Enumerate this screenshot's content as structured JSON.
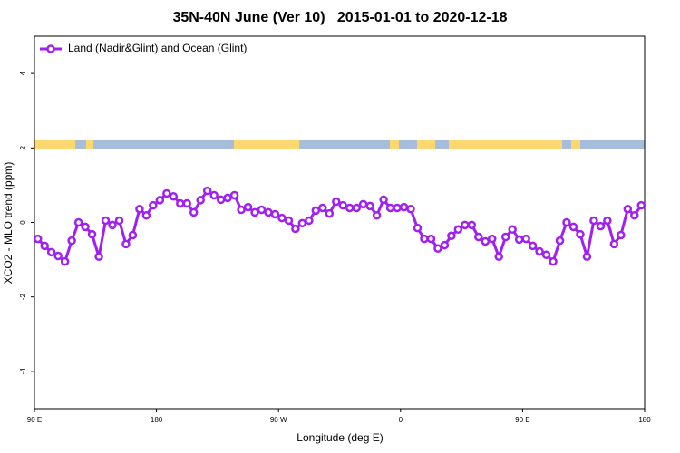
{
  "chart_data": {
    "type": "line",
    "title": "35N-40N June (Ver 10)   2015-01-01 to 2020-12-18",
    "xlabel": "Longitude (deg E)",
    "ylabel": "XCO2 - MLO trend (ppm)",
    "x": [
      92.5,
      97.5,
      102.5,
      107.5,
      112.5,
      117.5,
      122.5,
      127.5,
      132.5,
      137.5,
      142.5,
      147.5,
      152.5,
      157.5,
      162.5,
      167.5,
      172.5,
      177.5,
      182.5,
      187.5,
      192.5,
      197.5,
      202.5,
      207.5,
      212.5,
      217.5,
      222.5,
      227.5,
      232.5,
      237.5,
      242.5,
      247.5,
      252.5,
      257.5,
      262.5,
      267.5,
      272.5,
      277.5,
      282.5,
      287.5,
      292.5,
      297.5,
      302.5,
      307.5,
      312.5,
      317.5,
      322.5,
      327.5,
      332.5,
      337.5,
      342.5,
      347.5,
      352.5,
      357.5,
      362.5,
      367.5,
      372.5,
      377.5,
      382.5,
      387.5,
      392.5,
      397.5,
      402.5,
      407.5,
      412.5,
      417.5,
      422.5,
      427.5,
      432.5,
      437.5,
      442.5,
      447.5,
      452.5,
      457.5,
      462.5,
      467.5,
      472.5,
      477.5,
      482.5,
      487.5,
      492.5,
      497.5,
      502.5,
      507.5,
      512.5,
      517.5,
      522.5,
      527.5,
      532.5,
      537.5
    ],
    "series": [
      {
        "name": "Land (Nadir&Glint) and Ocean (Glint)",
        "color": "#a020f0",
        "values": [
          -0.44,
          -0.63,
          -0.8,
          -0.9,
          -1.05,
          -0.49,
          0.0,
          -0.12,
          -0.32,
          -0.92,
          0.05,
          -0.07,
          0.05,
          -0.58,
          -0.34,
          0.36,
          0.19,
          0.46,
          0.6,
          0.78,
          0.7,
          0.51,
          0.51,
          0.27,
          0.6,
          0.85,
          0.73,
          0.61,
          0.66,
          0.73,
          0.34,
          0.41,
          0.27,
          0.34,
          0.27,
          0.22,
          0.12,
          0.05,
          -0.17,
          -0.02,
          0.05,
          0.32,
          0.39,
          0.24,
          0.56,
          0.46,
          0.39,
          0.39,
          0.49,
          0.44,
          0.19,
          0.61,
          0.39,
          0.39,
          0.41,
          0.36,
          -0.15,
          -0.44,
          -0.44,
          -0.7,
          -0.61,
          -0.36,
          -0.19,
          -0.07,
          -0.07,
          -0.39,
          -0.51,
          -0.44,
          -0.92,
          -0.39,
          -0.19,
          -0.46,
          -0.44,
          -0.63,
          -0.78,
          -0.87,
          -1.05,
          -0.49,
          0.0,
          -0.12,
          -0.32,
          -0.92,
          0.05,
          -0.1,
          0.05,
          -0.58,
          -0.34,
          0.36,
          0.19,
          0.46
        ]
      }
    ],
    "xlim": [
      90,
      540
    ],
    "xticks": [
      {
        "value": 90,
        "label": "90 E"
      },
      180,
      {
        "value": 270,
        "label": "90 W"
      },
      {
        "value": 360,
        "label": "0"
      },
      {
        "value": 450,
        "label": "90 E"
      },
      {
        "value": 540,
        "label": "180"
      }
    ],
    "ylim": [
      -5,
      5
    ],
    "yticks": [
      -4,
      -2,
      0,
      2,
      4
    ],
    "legend": "top-left"
  }
}
